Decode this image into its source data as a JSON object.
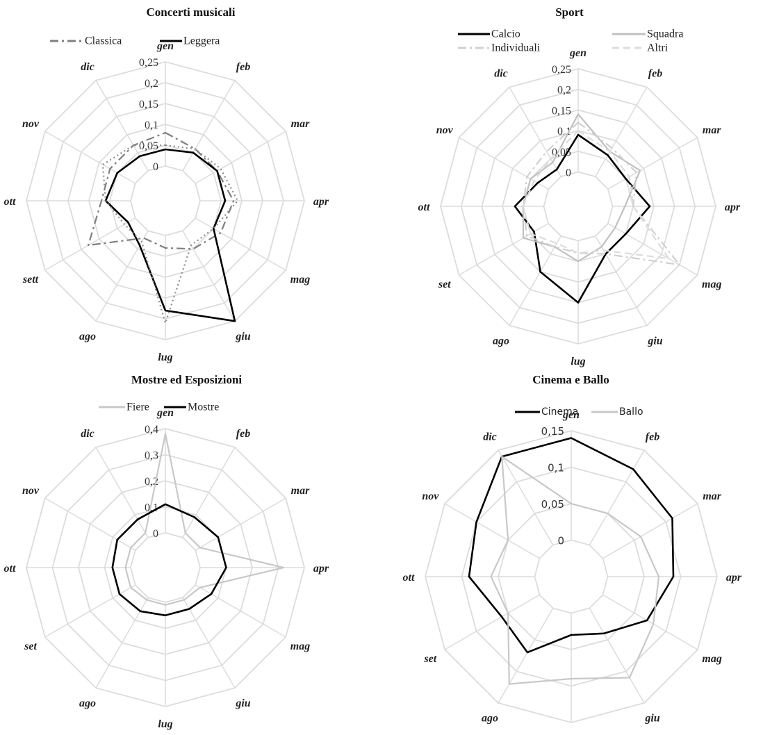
{
  "months": [
    "gen",
    "feb",
    "mar",
    "apr",
    "mag",
    "giu",
    "lug",
    "ago",
    "sett",
    "ott",
    "nov",
    "dic"
  ],
  "chart_data": [
    {
      "type": "radar",
      "title": "Concerti musicali",
      "categories": [
        "gen",
        "feb",
        "mar",
        "apr",
        "mag",
        "giu",
        "lug",
        "ago",
        "sett",
        "ott",
        "nov",
        "dic"
      ],
      "tick_labels": [
        "0",
        "0,05",
        "0,1",
        "0,15",
        "0,2",
        "0,25"
      ],
      "rlim": [
        0,
        0.25
      ],
      "legend_position": "top",
      "series": [
        {
          "name": "Classica",
          "color": "#7f7f7f",
          "dash": "dashdot",
          "values": [
            0.08,
            0.06,
            0.06,
            0.08,
            0.07,
            0.05,
            0.03,
            0.02,
            0.13,
            0.07,
            0.07,
            0.07
          ]
        },
        {
          "name": "Leggera",
          "color": "#000000",
          "dash": "solid",
          "values": [
            0.04,
            0.05,
            0.06,
            0.06,
            0.05,
            0.25,
            0.18,
            0.04,
            0.02,
            0.06,
            0.05,
            0.04
          ]
        },
        {
          "name": "",
          "color": "#8c8c8c",
          "dash": "dot",
          "values": [
            0.05,
            0.06,
            0.07,
            0.09,
            0.05,
            0.04,
            0.21,
            0.03,
            0.03,
            0.06,
            0.09,
            0.07
          ]
        }
      ]
    },
    {
      "type": "radar",
      "title": "Sport",
      "categories": [
        "gen",
        "feb",
        "mar",
        "apr",
        "mag",
        "giu",
        "lug",
        "ago",
        "set",
        "ott",
        "nov",
        "dic"
      ],
      "tick_labels": [
        "0",
        "0,05",
        "0,1",
        "0,15",
        "0,2",
        "0,25"
      ],
      "rlim": [
        0,
        0.25
      ],
      "legend_position": "top",
      "series": [
        {
          "name": "Calcio",
          "color": "#000000",
          "dash": "solid",
          "values": [
            0.09,
            0.06,
            0.05,
            0.09,
            0.05,
            0.05,
            0.15,
            0.1,
            0.04,
            0.07,
            0.03,
            0.02
          ]
        },
        {
          "name": "Squadra",
          "color": "#c0c0c0",
          "dash": "solid",
          "values": [
            0.14,
            0.07,
            0.09,
            0.03,
            0.02,
            0.03,
            0.05,
            0.03,
            0.07,
            0.05,
            0.05,
            0.04
          ]
        },
        {
          "name": "Individuali",
          "color": "#d0d0d0",
          "dash": "dashdot",
          "values": [
            0.12,
            0.08,
            0.08,
            0.05,
            0.2,
            0.05,
            0.03,
            0.03,
            0.06,
            0.05,
            0.06,
            0.07
          ]
        },
        {
          "name": "Altri",
          "color": "#dcdcdc",
          "dash": "dash",
          "values": [
            0.1,
            0.07,
            0.06,
            0.05,
            0.17,
            0.04,
            0.03,
            0.02,
            0.05,
            0.05,
            0.04,
            0.05
          ]
        }
      ]
    },
    {
      "type": "radar",
      "title": "Mostre ed Esposizioni",
      "categories": [
        "gen",
        "feb",
        "mar",
        "apr",
        "mag",
        "giu",
        "lug",
        "ago",
        "set",
        "ott",
        "nov",
        "dic"
      ],
      "tick_labels": [
        "0",
        "0,1",
        "0,2",
        "0,3",
        "0,4"
      ],
      "rlim": [
        0,
        0.4
      ],
      "legend_position": "top",
      "series": [
        {
          "name": "Fiere",
          "color": "#c8c8c8",
          "dash": "solid",
          "values": [
            0.38,
            0.02,
            0.02,
            0.32,
            0.02,
            0.01,
            0.01,
            0.01,
            0.02,
            0.02,
            0.02,
            0.02
          ]
        },
        {
          "name": "Mostre",
          "color": "#000000",
          "dash": "solid",
          "values": [
            0.11,
            0.09,
            0.1,
            0.1,
            0.07,
            0.05,
            0.05,
            0.06,
            0.07,
            0.07,
            0.08,
            0.08
          ]
        }
      ]
    },
    {
      "type": "radar",
      "title": "Cinema e Ballo",
      "categories": [
        "gen",
        "feb",
        "mar",
        "apr",
        "mag",
        "giu",
        "lug",
        "ago",
        "set",
        "ott",
        "nov",
        "dic"
      ],
      "tick_labels": [
        "0",
        "0,05",
        "0,1",
        "0,15"
      ],
      "rlim": [
        0,
        0.15
      ],
      "legend_position": "top",
      "series": [
        {
          "name": "Cinema",
          "color": "#000000",
          "dash": "solid",
          "values": [
            0.14,
            0.12,
            0.11,
            0.09,
            0.07,
            0.04,
            0.03,
            0.07,
            0.06,
            0.09,
            0.1,
            0.14
          ]
        },
        {
          "name": "Ballo",
          "color": "#c8c8c8",
          "dash": "solid",
          "values": [
            0.05,
            0.05,
            0.06,
            0.07,
            0.08,
            0.11,
            0.09,
            0.12,
            0.05,
            0.06,
            0.05,
            0.14
          ]
        }
      ]
    }
  ]
}
